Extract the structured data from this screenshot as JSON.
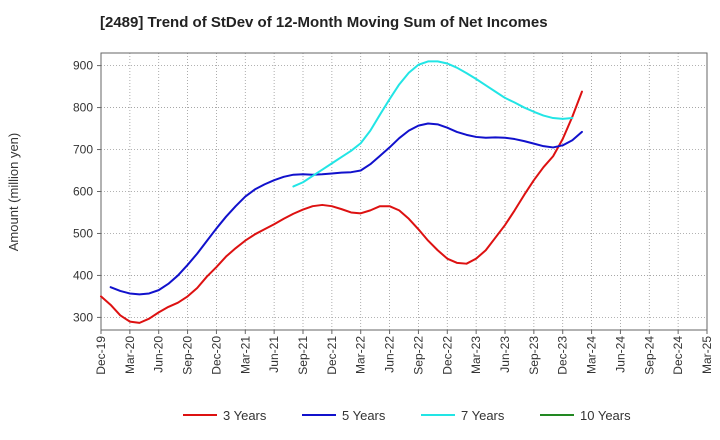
{
  "chart_data": {
    "type": "line",
    "title": "[2489]  Trend of StDev of 12-Month Moving Sum of Net Incomes",
    "xlabel": "",
    "ylabel": "Amount (million yen)",
    "ylim": [
      270,
      930
    ],
    "yticks": [
      300,
      400,
      500,
      600,
      700,
      800,
      900
    ],
    "x_ticks": [
      "Dec-19",
      "Mar-20",
      "Jun-20",
      "Sep-20",
      "Dec-20",
      "Mar-21",
      "Jun-21",
      "Sep-21",
      "Dec-21",
      "Mar-22",
      "Jun-22",
      "Sep-22",
      "Dec-22",
      "Mar-23",
      "Jun-23",
      "Sep-23",
      "Dec-23",
      "Mar-24",
      "Jun-24",
      "Sep-24",
      "Dec-24",
      "Mar-25"
    ],
    "grid": true,
    "legend_position": "bottom",
    "series": [
      {
        "name": "3 Years",
        "color": "#dd1111",
        "points": [
          [
            0,
            350
          ],
          [
            1,
            330
          ],
          [
            2,
            305
          ],
          [
            3,
            290
          ],
          [
            4,
            287
          ],
          [
            5,
            297
          ],
          [
            6,
            312
          ],
          [
            7,
            325
          ],
          [
            8,
            335
          ],
          [
            9,
            350
          ],
          [
            10,
            370
          ],
          [
            11,
            397
          ],
          [
            12,
            420
          ],
          [
            13,
            445
          ],
          [
            14,
            465
          ],
          [
            15,
            483
          ],
          [
            16,
            498
          ],
          [
            17,
            510
          ],
          [
            18,
            522
          ],
          [
            19,
            535
          ],
          [
            20,
            547
          ],
          [
            21,
            557
          ],
          [
            22,
            565
          ],
          [
            23,
            568
          ],
          [
            24,
            565
          ],
          [
            25,
            558
          ],
          [
            26,
            550
          ],
          [
            27,
            548
          ],
          [
            28,
            555
          ],
          [
            29,
            565
          ],
          [
            30,
            565
          ],
          [
            31,
            555
          ],
          [
            32,
            535
          ],
          [
            33,
            510
          ],
          [
            34,
            483
          ],
          [
            35,
            460
          ],
          [
            36,
            440
          ],
          [
            37,
            430
          ],
          [
            38,
            428
          ],
          [
            39,
            440
          ],
          [
            40,
            460
          ],
          [
            41,
            490
          ],
          [
            42,
            520
          ],
          [
            43,
            555
          ],
          [
            44,
            592
          ],
          [
            45,
            627
          ],
          [
            46,
            658
          ],
          [
            47,
            684
          ],
          [
            48,
            725
          ],
          [
            49,
            778
          ],
          [
            50,
            838
          ]
        ]
      },
      {
        "name": "5 Years",
        "color": "#1111cc",
        "points": [
          [
            1,
            372
          ],
          [
            2,
            363
          ],
          [
            3,
            357
          ],
          [
            4,
            355
          ],
          [
            5,
            357
          ],
          [
            6,
            365
          ],
          [
            7,
            380
          ],
          [
            8,
            400
          ],
          [
            9,
            425
          ],
          [
            10,
            452
          ],
          [
            11,
            482
          ],
          [
            12,
            512
          ],
          [
            13,
            540
          ],
          [
            14,
            565
          ],
          [
            15,
            588
          ],
          [
            16,
            605
          ],
          [
            17,
            617
          ],
          [
            18,
            627
          ],
          [
            19,
            635
          ],
          [
            20,
            640
          ],
          [
            21,
            641
          ],
          [
            22,
            640
          ],
          [
            23,
            641
          ],
          [
            24,
            643
          ],
          [
            25,
            645
          ],
          [
            26,
            646
          ],
          [
            27,
            650
          ],
          [
            28,
            665
          ],
          [
            29,
            685
          ],
          [
            30,
            705
          ],
          [
            31,
            727
          ],
          [
            32,
            745
          ],
          [
            33,
            757
          ],
          [
            34,
            762
          ],
          [
            35,
            760
          ],
          [
            36,
            752
          ],
          [
            37,
            742
          ],
          [
            38,
            735
          ],
          [
            39,
            730
          ],
          [
            40,
            728
          ],
          [
            41,
            729
          ],
          [
            42,
            728
          ],
          [
            43,
            725
          ],
          [
            44,
            720
          ],
          [
            45,
            714
          ],
          [
            46,
            708
          ],
          [
            47,
            705
          ],
          [
            48,
            710
          ],
          [
            49,
            722
          ],
          [
            50,
            742
          ]
        ]
      },
      {
        "name": "7 Years",
        "color": "#22e5e5",
        "points": [
          [
            20,
            612
          ],
          [
            21,
            622
          ],
          [
            22,
            637
          ],
          [
            23,
            652
          ],
          [
            24,
            667
          ],
          [
            25,
            682
          ],
          [
            26,
            697
          ],
          [
            27,
            715
          ],
          [
            28,
            745
          ],
          [
            29,
            783
          ],
          [
            30,
            820
          ],
          [
            31,
            855
          ],
          [
            32,
            883
          ],
          [
            33,
            902
          ],
          [
            34,
            910
          ],
          [
            35,
            910
          ],
          [
            36,
            905
          ],
          [
            37,
            895
          ],
          [
            38,
            882
          ],
          [
            39,
            868
          ],
          [
            40,
            853
          ],
          [
            41,
            838
          ],
          [
            42,
            823
          ],
          [
            43,
            812
          ],
          [
            44,
            800
          ],
          [
            45,
            790
          ],
          [
            46,
            781
          ],
          [
            47,
            775
          ],
          [
            48,
            773
          ],
          [
            49,
            775
          ]
        ]
      },
      {
        "name": "10 Years",
        "color": "#228822",
        "points": []
      }
    ]
  }
}
